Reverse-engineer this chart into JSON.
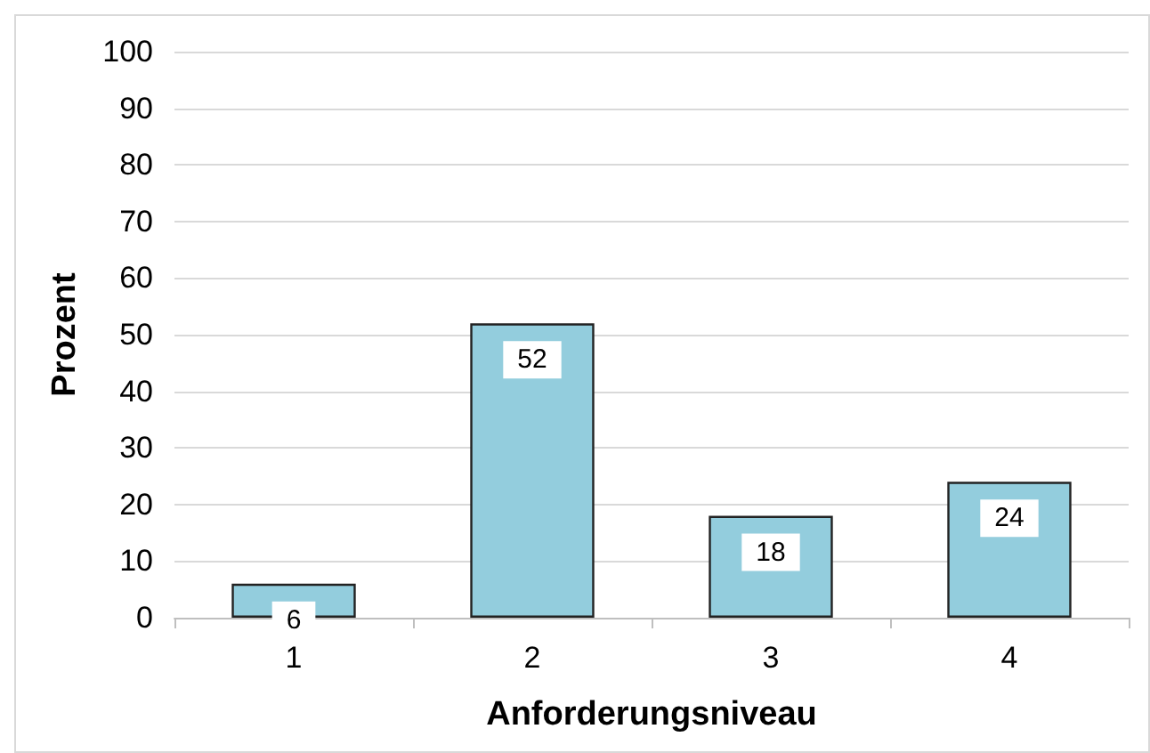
{
  "chart_data": {
    "type": "bar",
    "xlabel": "Anforderungsniveau",
    "ylabel": "Prozent",
    "categories": [
      "1",
      "2",
      "3",
      "4"
    ],
    "values": [
      6,
      52,
      18,
      24
    ],
    "color": "#93cddd",
    "ylim": [
      0,
      100
    ],
    "yticks": [
      0,
      10,
      20,
      30,
      40,
      50,
      60,
      70,
      80,
      90,
      100
    ],
    "grid": "y",
    "data_labels": true
  }
}
